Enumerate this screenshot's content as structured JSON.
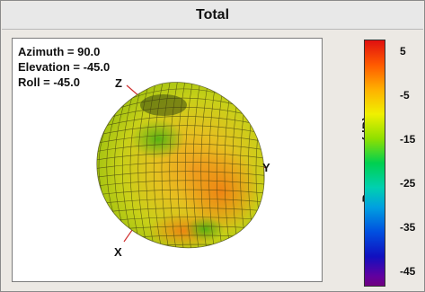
{
  "window": {
    "title": "Total"
  },
  "readouts": {
    "azimuth": "Azimuth = 90.0",
    "elevation": "Elevation = -45.0",
    "roll": "Roll = -45.0"
  },
  "axes": {
    "x": "X",
    "y": "Y",
    "z": "Z"
  },
  "colorbar": {
    "label": "Response  (dB)",
    "ticks": [
      "5",
      "-5",
      "-15",
      "-25",
      "-35",
      "-45"
    ]
  },
  "colors": {
    "surface_main": "#c9d21a",
    "surface_warm": "#e08a1a",
    "mesh": "#3a3a10"
  }
}
